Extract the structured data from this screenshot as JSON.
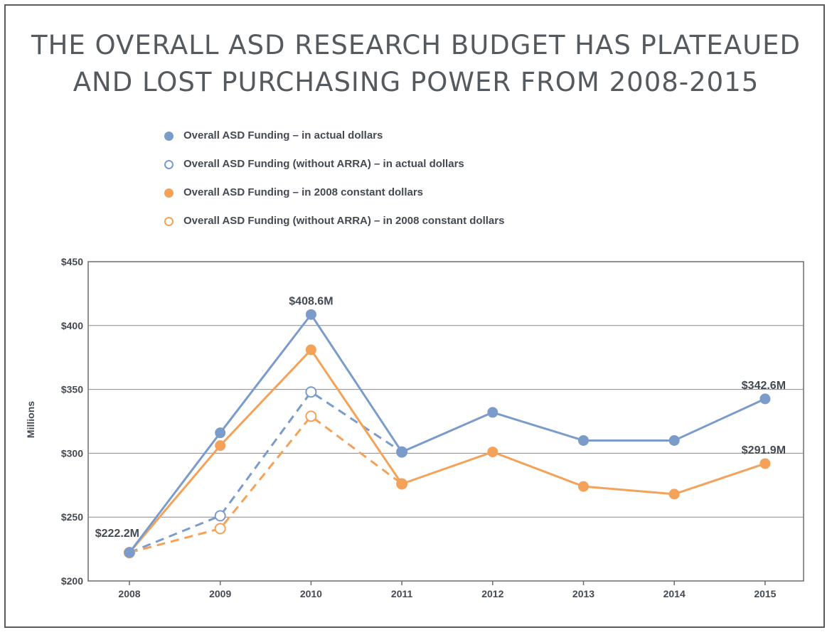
{
  "chart_data": {
    "type": "line",
    "title": [
      "THE OVERALL ASD RESEARCH BUDGET HAS PLATEAUED",
      "AND LOST PURCHASING POWER FROM 2008-2015"
    ],
    "ylabel": "Millions",
    "xlabel": "",
    "x": [
      "2008",
      "2009",
      "2010",
      "2011",
      "2012",
      "2013",
      "2014",
      "2015"
    ],
    "ylim": [
      200,
      450
    ],
    "yticks": [
      200,
      250,
      300,
      350,
      400,
      450
    ],
    "ytick_labels": [
      "$200",
      "$250",
      "$300",
      "$350",
      "$400",
      "$450"
    ],
    "grid": "horizontal",
    "legend_position": "top-left",
    "series": [
      {
        "name": "Overall ASD Funding – in actual dollars",
        "color": "#7b9ccb",
        "marker": "filled",
        "line": "solid",
        "x": [
          "2008",
          "2009",
          "2010",
          "2011",
          "2012",
          "2013",
          "2014",
          "2015"
        ],
        "values": [
          222.2,
          316,
          408.6,
          301,
          332,
          310,
          310,
          342.6
        ]
      },
      {
        "name": "Overall ASD Funding (without ARRA) – in actual dollars",
        "color": "#7b9ccb",
        "marker": "hollow",
        "line": "dashed",
        "x": [
          "2008",
          "2009",
          "2010",
          "2011"
        ],
        "values": [
          222.2,
          251,
          348,
          301
        ]
      },
      {
        "name": "Overall ASD Funding – in 2008 constant dollars",
        "color": "#f4a259",
        "marker": "filled",
        "line": "solid",
        "x": [
          "2008",
          "2009",
          "2010",
          "2011",
          "2012",
          "2013",
          "2014",
          "2015"
        ],
        "values": [
          222.2,
          306,
          381,
          276,
          301,
          274,
          268,
          291.9
        ]
      },
      {
        "name": "Overall ASD Funding (without ARRA) – in 2008 constant dollars",
        "color": "#f4a259",
        "marker": "hollow",
        "line": "dashed",
        "x": [
          "2008",
          "2009",
          "2010",
          "2011"
        ],
        "values": [
          222.2,
          241,
          329,
          276
        ]
      }
    ],
    "annotations": [
      {
        "text": "$222.2M",
        "x": "2008",
        "y": 222.2,
        "placement": "upper-left"
      },
      {
        "text": "$408.6M",
        "x": "2010",
        "y": 408.6,
        "placement": "above"
      },
      {
        "text": "$342.6M",
        "x": "2015",
        "y": 342.6,
        "placement": "above"
      },
      {
        "text": "$291.9M",
        "x": "2015",
        "y": 291.9,
        "placement": "above"
      }
    ]
  }
}
